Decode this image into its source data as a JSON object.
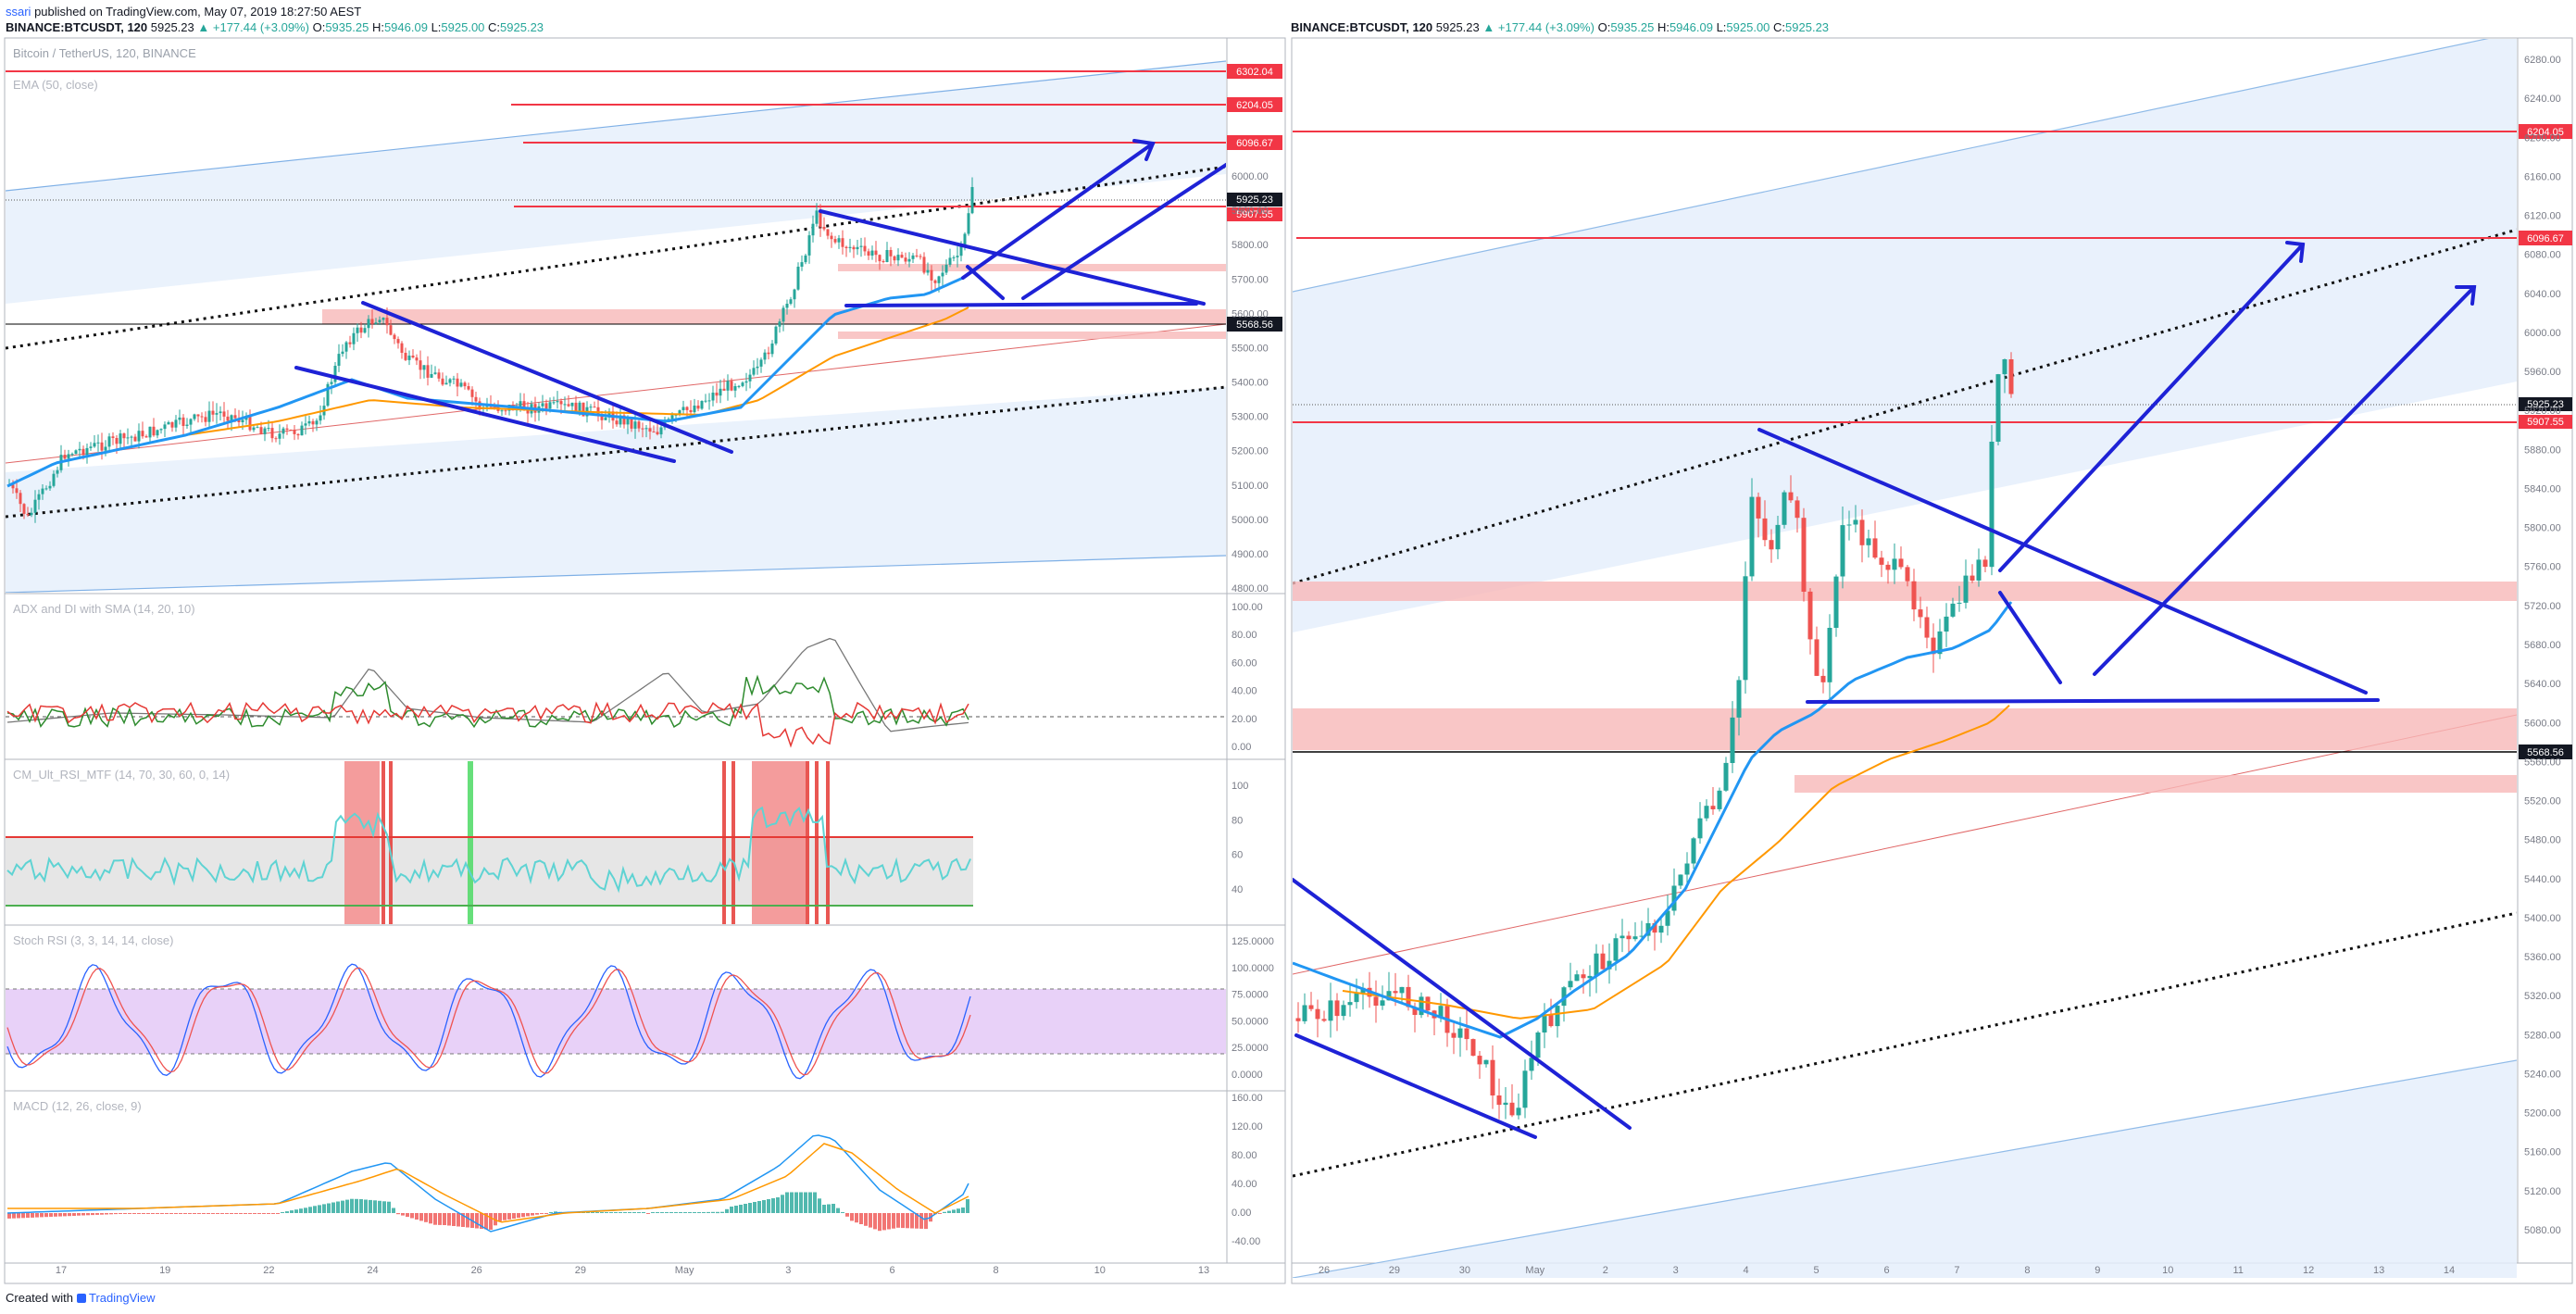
{
  "publish": {
    "username": "ssari",
    "rest": " published on TradingView.com, May 07, 2019 18:27:50 AEST"
  },
  "symbol_bar": {
    "symbol": "BINANCE:BTCUSDT, 120",
    "last": "5925.23",
    "change": "▲ +177.44 (+3.09%)",
    "o_label": "O:",
    "o": "5935.25",
    "h_label": "H:",
    "h": "5946.09",
    "l_label": "L:",
    "l": "5925.00",
    "c_label": "C:",
    "c": "5925.23"
  },
  "left_chart": {
    "price_legend": [
      "Bitcoin / TetherUS, 120, BINANCE",
      "EMA (50, close)"
    ],
    "price_levels": [
      "6302.04",
      "6204.05",
      "6096.67",
      "5907.55"
    ],
    "last_price": "5925.23",
    "support_price": "5568.56",
    "price_axis": [
      "6000.00",
      "5900.00",
      "5800.00",
      "5700.00",
      "5600.00",
      "5500.00",
      "5400.00",
      "5300.00",
      "5200.00",
      "5100.00",
      "5000.00",
      "4900.00",
      "4800.00"
    ],
    "adx": {
      "legend": "ADX and DI with SMA (14, 20, 10)",
      "axis": [
        "100.00",
        "80.00",
        "60.00",
        "40.00",
        "20.00",
        "0.00"
      ]
    },
    "rsi": {
      "legend": "CM_Ult_RSI_MTF (14, 70, 30, 60, 0, 14)",
      "axis": [
        "100",
        "80",
        "60",
        "40"
      ]
    },
    "stoch": {
      "legend": "Stoch RSI (3, 3, 14, 14, close)",
      "axis": [
        "125.0000",
        "100.0000",
        "75.0000",
        "50.0000",
        "25.0000",
        "0.0000"
      ]
    },
    "macd": {
      "legend": "MACD (12, 26, close, 9)",
      "axis": [
        "160.00",
        "120.00",
        "80.00",
        "40.00",
        "0.00",
        "-40.00"
      ]
    },
    "time_axis": [
      "17",
      "19",
      "22",
      "24",
      "26",
      "29",
      "May",
      "3",
      "6",
      "8",
      "10",
      "13"
    ]
  },
  "right_chart": {
    "price_levels": [
      "6204.05",
      "6096.67",
      "5907.55"
    ],
    "last_price": "5925.23",
    "support_price": "5568.56",
    "price_axis": [
      "6280.00",
      "6240.00",
      "6200.00",
      "6160.00",
      "6120.00",
      "6080.00",
      "6040.00",
      "6000.00",
      "5960.00",
      "5920.00",
      "5880.00",
      "5840.00",
      "5800.00",
      "5760.00",
      "5720.00",
      "5680.00",
      "5640.00",
      "5600.00",
      "5560.00",
      "5520.00",
      "5480.00",
      "5440.00",
      "5400.00",
      "5360.00",
      "5320.00",
      "5280.00",
      "5240.00",
      "5200.00",
      "5160.00",
      "5120.00",
      "5080.00"
    ],
    "time_axis": [
      "26",
      "29",
      "30",
      "May",
      "2",
      "3",
      "4",
      "5",
      "6",
      "7",
      "8",
      "9",
      "10",
      "11",
      "12",
      "13",
      "14"
    ]
  },
  "footer": {
    "created_with": "Created with",
    "brand": "TradingView"
  },
  "colors": {
    "up": "#26a69a",
    "down": "#ef5350",
    "ema_blue": "#2196f3",
    "ema_orange": "#ff9800",
    "level_red": "#f23645",
    "drawing_blue": "#1e22d6",
    "channel_fill": "#e3eefb"
  }
}
